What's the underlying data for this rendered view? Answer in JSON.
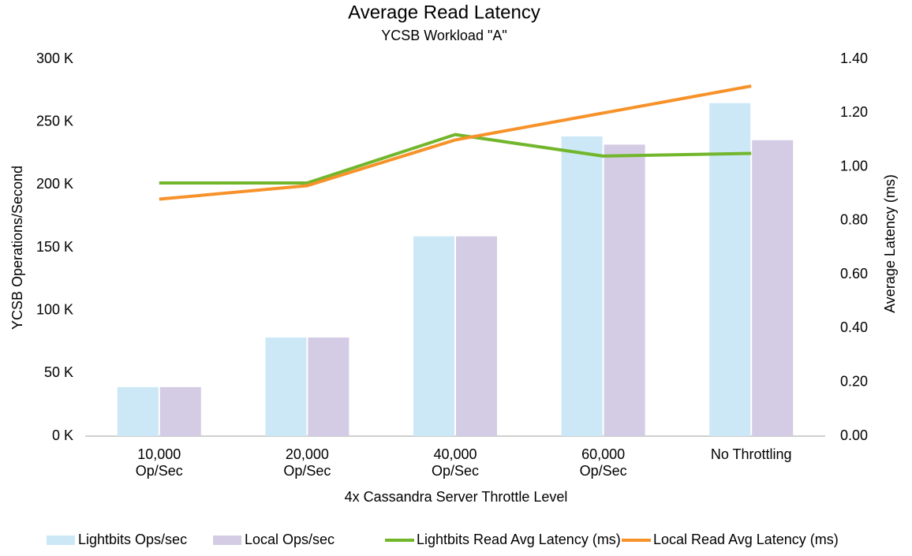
{
  "chart_data": {
    "type": "bar_line",
    "title": "Average Read Latency",
    "subtitle": "YCSB Workload \"A\"",
    "x_label": "4x Cassandra Server Throttle Level",
    "y_label": "YCSB Operations/Second",
    "y2_label": "Average Latency (ms)",
    "categories": [
      "10,000\nOp/Sec",
      "20,000\nOp/Sec",
      "40,000\nOp/Sec",
      "60,000\nOp/Sec",
      "No Throttling"
    ],
    "ylim": [
      0,
      300000
    ],
    "yticks": [
      {
        "value": 0,
        "label": "0 K"
      },
      {
        "value": 50000,
        "label": "50 K"
      },
      {
        "value": 100000,
        "label": "100 K"
      },
      {
        "value": 150000,
        "label": "150 K"
      },
      {
        "value": 200000,
        "label": "200 K"
      },
      {
        "value": 250000,
        "label": "250 K"
      },
      {
        "value": 300000,
        "label": "300 K"
      }
    ],
    "y2lim": [
      0,
      1.4
    ],
    "y2ticks": [
      {
        "value": 0,
        "label": "0.00"
      },
      {
        "value": 0.2,
        "label": "0.20"
      },
      {
        "value": 0.4,
        "label": "0.40"
      },
      {
        "value": 0.6,
        "label": "0.60"
      },
      {
        "value": 0.8,
        "label": "0.80"
      },
      {
        "value": 1.0,
        "label": "1.00"
      },
      {
        "value": 1.2,
        "label": "1.20"
      },
      {
        "value": 1.4,
        "label": "1.40"
      }
    ],
    "series": [
      {
        "name": "Lightbits Ops/sec",
        "type": "bar",
        "color": "#cce8f6",
        "values": [
          39000,
          78500,
          159000,
          238500,
          265000
        ]
      },
      {
        "name": "Local Ops/sec",
        "type": "bar",
        "color": "#d4cce4",
        "values": [
          39000,
          78500,
          159000,
          232000,
          235500
        ]
      },
      {
        "name": "Lightbits Read Avg Latency (ms)",
        "type": "line",
        "axis": "y2",
        "color": "#72b62c",
        "values": [
          0.94,
          0.94,
          1.12,
          1.04,
          1.05
        ]
      },
      {
        "name": "Local Read Avg Latency (ms)",
        "type": "line",
        "axis": "y2",
        "color": "#f7922a",
        "values": [
          0.88,
          0.93,
          1.1,
          1.2,
          1.3
        ]
      }
    ]
  }
}
